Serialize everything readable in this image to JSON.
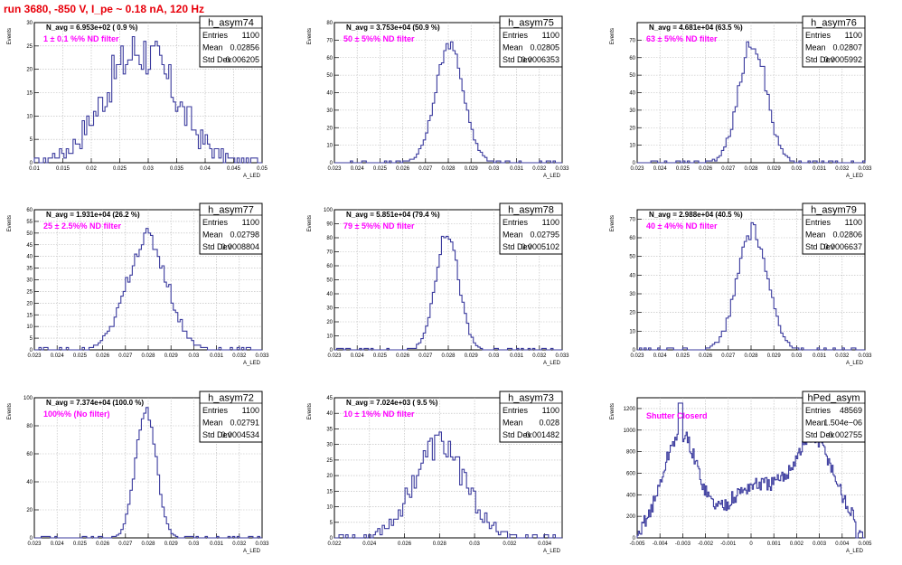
{
  "page_title": "run 3680,  -850 V, I_pe ~ 0.18 nA, 120 Hz",
  "colors": {
    "title": "#e8000b",
    "hist_line": "#3b3b9e",
    "annotation": "#ff00ff",
    "grid": "#b8b8b8"
  },
  "chart_data": [
    {
      "type": "histogram",
      "name": "h_asym74",
      "navg": "N_avg = 6.953e+02 ( 0.9 %)",
      "annotation": "1 ± 0.1 %% ND filter",
      "stats": [
        [
          "Entries",
          "1100"
        ],
        [
          "Mean",
          "0.02856"
        ],
        [
          "Std Dev",
          "0.006205"
        ]
      ],
      "xlim": [
        0.01,
        0.05
      ],
      "ylim": [
        0,
        30
      ],
      "xticks": [
        "0.01",
        "0.015",
        "0.02",
        "0.025",
        "0.03",
        "0.035",
        "0.04",
        "0.045",
        "0.05"
      ],
      "yticks": [
        "0",
        "5",
        "10",
        "15",
        "20",
        "25",
        "30"
      ],
      "ylabel": "Events",
      "xlabel": "A_LED",
      "peak": 0.0285,
      "sigma": 0.0062,
      "height": 24,
      "noise": 5.5
    },
    {
      "type": "histogram",
      "name": "h_asym75",
      "navg": "N_avg = 3.753e+04 (50.9 %)",
      "annotation": "50 ± 5%% ND filter",
      "stats": [
        [
          "Entries",
          "1100"
        ],
        [
          "Mean",
          "0.02805"
        ],
        [
          "Std Dev",
          "0.0006353"
        ]
      ],
      "xlim": [
        0.023,
        0.033
      ],
      "ylim": [
        0,
        80
      ],
      "xticks": [
        "0.023",
        "0.024",
        "0.025",
        "0.026",
        "0.027",
        "0.028",
        "0.029",
        "0.03",
        "0.031",
        "0.032",
        "0.033"
      ],
      "yticks": [
        "0",
        "10",
        "20",
        "30",
        "40",
        "50",
        "60",
        "70",
        "80"
      ],
      "ylabel": "Events",
      "xlabel": "A_LED",
      "peak": 0.02805,
      "sigma": 0.00062,
      "height": 67,
      "noise": 3
    },
    {
      "type": "histogram",
      "name": "h_asym76",
      "navg": "N_avg = 4.681e+04 (63.5 %)",
      "annotation": "63 ± 5%% ND filter",
      "stats": [
        [
          "Entries",
          "1100"
        ],
        [
          "Mean",
          "0.02807"
        ],
        [
          "Std Dev",
          "0.0005992"
        ]
      ],
      "xlim": [
        0.023,
        0.033
      ],
      "ylim": [
        0,
        80
      ],
      "xticks": [
        "0.023",
        "0.024",
        "0.025",
        "0.026",
        "0.027",
        "0.028",
        "0.029",
        "0.03",
        "0.031",
        "0.032",
        "0.033"
      ],
      "yticks": [
        "0",
        "10",
        "20",
        "30",
        "40",
        "50",
        "60",
        "70"
      ],
      "ylabel": "Events",
      "xlabel": "A_LED",
      "peak": 0.02807,
      "sigma": 0.0006,
      "height": 70,
      "noise": 5
    },
    {
      "type": "histogram",
      "name": "h_asym77",
      "navg": "N_avg = 1.931e+04 (26.2 %)",
      "annotation": "25 ± 2.5%% ND filter",
      "stats": [
        [
          "Entries",
          "1100"
        ],
        [
          "Mean",
          "0.02798"
        ],
        [
          "Std Dev",
          "0.0008804"
        ]
      ],
      "xlim": [
        0.023,
        0.033
      ],
      "ylim": [
        0,
        60
      ],
      "xticks": [
        "0.023",
        "0.024",
        "0.025",
        "0.026",
        "0.027",
        "0.028",
        "0.029",
        "0.03",
        "0.031",
        "0.032",
        "0.033"
      ],
      "yticks": [
        "0",
        "5",
        "10",
        "15",
        "20",
        "25",
        "30",
        "35",
        "40",
        "45",
        "50",
        "55",
        "60"
      ],
      "ylabel": "Events",
      "xlabel": "A_LED",
      "peak": 0.02795,
      "sigma": 0.00088,
      "height": 48,
      "noise": 4
    },
    {
      "type": "histogram",
      "name": "h_asym78",
      "navg": "N_avg = 5.851e+04 (79.4 %)",
      "annotation": "79 ± 5%% ND filter",
      "stats": [
        [
          "Entries",
          "1100"
        ],
        [
          "Mean",
          "0.02795"
        ],
        [
          "Std Dev",
          "0.0005102"
        ]
      ],
      "xlim": [
        0.023,
        0.033
      ],
      "ylim": [
        0,
        100
      ],
      "xticks": [
        "0.023",
        "0.024",
        "0.025",
        "0.026",
        "0.027",
        "0.028",
        "0.029",
        "0.03",
        "0.031",
        "0.032",
        "0.033"
      ],
      "yticks": [
        "0",
        "10",
        "20",
        "30",
        "40",
        "50",
        "60",
        "70",
        "80",
        "90",
        "100"
      ],
      "ylabel": "Events",
      "xlabel": "A_LED",
      "peak": 0.02795,
      "sigma": 0.00051,
      "height": 84,
      "noise": 4
    },
    {
      "type": "histogram",
      "name": "h_asym79",
      "navg": "N_avg = 2.988e+04 (40.5 %)",
      "annotation": "40 ± 4%% ND filter",
      "stats": [
        [
          "Entries",
          "1100"
        ],
        [
          "Mean",
          "0.02806"
        ],
        [
          "Std Dev",
          "0.0006637"
        ]
      ],
      "xlim": [
        0.023,
        0.033
      ],
      "ylim": [
        0,
        75
      ],
      "xticks": [
        "0.023",
        "0.024",
        "0.025",
        "0.026",
        "0.027",
        "0.028",
        "0.029",
        "0.03",
        "0.031",
        "0.032",
        "0.033"
      ],
      "yticks": [
        "0",
        "10",
        "20",
        "30",
        "40",
        "50",
        "60",
        "70"
      ],
      "ylabel": "Events",
      "xlabel": "A_LED",
      "peak": 0.02806,
      "sigma": 0.00066,
      "height": 64,
      "noise": 4
    },
    {
      "type": "histogram",
      "name": "h_asym72",
      "navg": "N_avg = 7.374e+04 (100.0 %)",
      "annotation": "100%% (No filter)",
      "stats": [
        [
          "Entries",
          "1100"
        ],
        [
          "Mean",
          "0.02791"
        ],
        [
          "Std Dev",
          "0.0004534"
        ]
      ],
      "xlim": [
        0.023,
        0.033
      ],
      "ylim": [
        0,
        100
      ],
      "xticks": [
        "0.023",
        "0.024",
        "0.025",
        "0.026",
        "0.027",
        "0.028",
        "0.029",
        "0.03",
        "0.031",
        "0.032",
        "0.033"
      ],
      "yticks": [
        "0",
        "20",
        "40",
        "60",
        "80",
        "100"
      ],
      "ylabel": "Events",
      "xlabel": "A_LED",
      "peak": 0.0279,
      "sigma": 0.00045,
      "height": 92,
      "noise": 3
    },
    {
      "type": "histogram",
      "name": "h_asym73",
      "navg": "N_avg = 7.024e+03 ( 9.5 %)",
      "annotation": "10 ± 1%% ND filter",
      "stats": [
        [
          "Entries",
          "1100"
        ],
        [
          "Mean",
          "0.028"
        ],
        [
          "Std Dev",
          "0.001482"
        ]
      ],
      "xlim": [
        0.022,
        0.035
      ],
      "ylim": [
        0,
        45
      ],
      "xticks": [
        "0.022",
        "0.024",
        "0.026",
        "0.028",
        "0.03",
        "0.032",
        "0.034"
      ],
      "yticks": [
        "0",
        "5",
        "10",
        "15",
        "20",
        "25",
        "30",
        "35",
        "40",
        "45"
      ],
      "ylabel": "Events",
      "xlabel": "A_LED",
      "peak": 0.028,
      "sigma": 0.00148,
      "height": 30,
      "noise": 5
    },
    {
      "type": "histogram",
      "name": "hPed_asym",
      "navg": "",
      "annotation": "Shutter Closerd",
      "stats": [
        [
          "Entries",
          "48569"
        ],
        [
          "Mean",
          "1.504e−06"
        ],
        [
          "Std Dev",
          "0.002755"
        ]
      ],
      "xlim": [
        -0.005,
        0.005
      ],
      "ylim": [
        0,
        1300
      ],
      "xticks": [
        "-0.005",
        "-0.004",
        "-0.003",
        "-0.002",
        "-0.001",
        "0",
        "0.001",
        "0.002",
        "0.003",
        "0.004",
        "0.005"
      ],
      "yticks": [
        "0",
        "200",
        "400",
        "600",
        "800",
        "1000",
        "1200"
      ],
      "ylabel": "Events",
      "xlabel": "A_LED",
      "pedestal": true
    }
  ]
}
